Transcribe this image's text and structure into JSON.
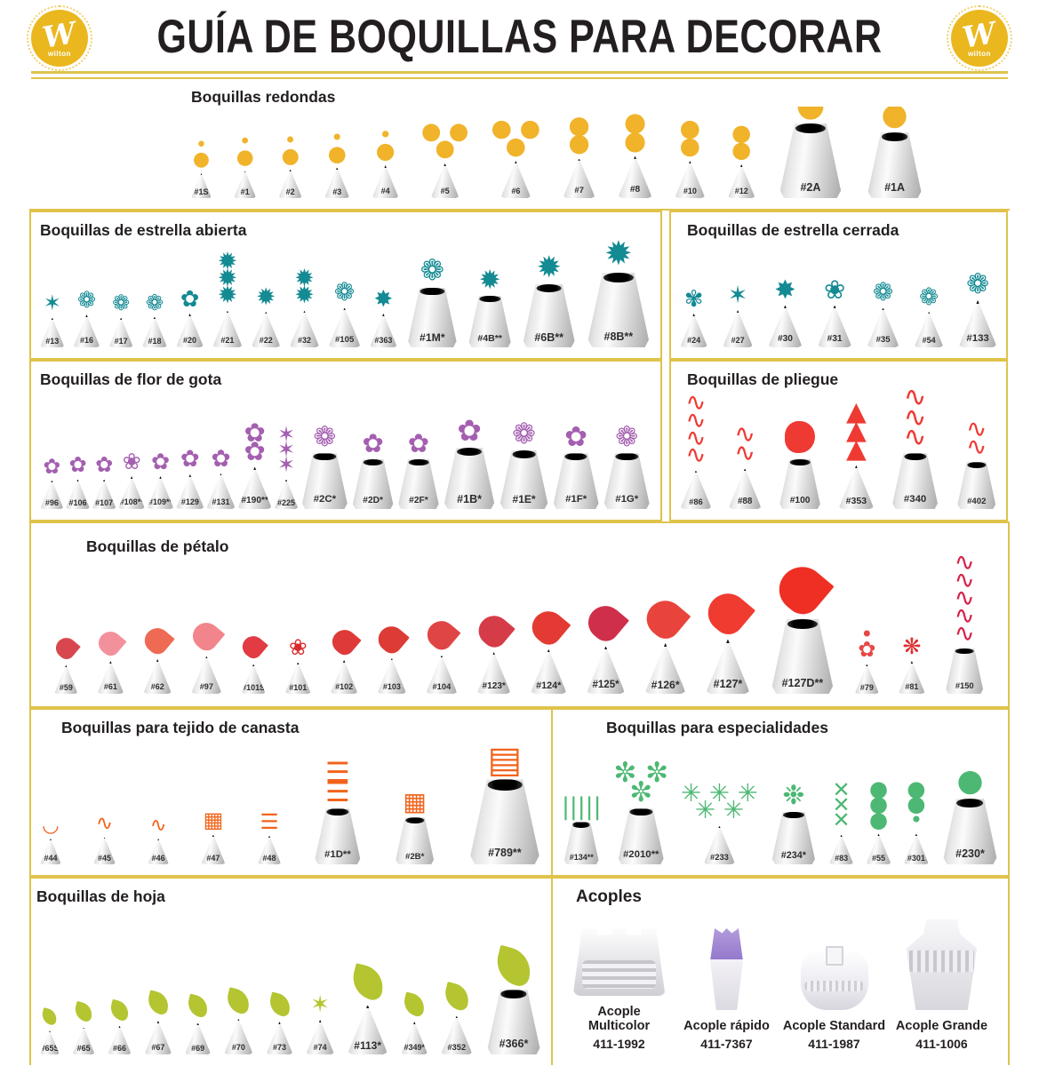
{
  "header": {
    "title": "GUÍA DE BOQUILLAS PARA DECORAR",
    "logo_letter": "W",
    "logo_sub": "wilton",
    "brand_gold": "#eab71e",
    "rule_gold": "#dfc34a"
  },
  "sections": [
    {
      "id": "redondas",
      "title": "Boquillas redondas",
      "color": "#f0b32a",
      "tips": [
        {
          "label": "#1S",
          "glyph": "•\n●",
          "s": 0.5
        },
        {
          "label": "#1",
          "glyph": "•\n●",
          "s": 0.55
        },
        {
          "label": "#2",
          "glyph": "•\n●",
          "s": 0.58
        },
        {
          "label": "#3",
          "glyph": "•\n●",
          "s": 0.62
        },
        {
          "label": "#4",
          "glyph": "•\n●",
          "s": 0.66
        },
        {
          "label": "#5",
          "glyph": "● ●\n●",
          "s": 0.7
        },
        {
          "label": "#6",
          "glyph": "● ●\n●",
          "s": 0.75
        },
        {
          "label": "#7",
          "glyph": "●\n●",
          "s": 0.8
        },
        {
          "label": "#8",
          "glyph": "●\n●",
          "s": 0.85
        },
        {
          "label": "#10",
          "glyph": "●\n●",
          "s": 0.75
        },
        {
          "label": "#12",
          "glyph": "●\n●",
          "s": 0.68
        },
        {
          "label": "#2A",
          "glyph": "●",
          "s": 1.28,
          "kind": "tube"
        },
        {
          "label": "#1A",
          "glyph": "●",
          "s": 1.12,
          "kind": "tube"
        }
      ]
    },
    {
      "id": "abierta",
      "title": "Boquillas de estrella abierta",
      "color": "#148a93",
      "tips": [
        {
          "label": "#13",
          "glyph": "✶",
          "s": 0.6
        },
        {
          "label": "#16",
          "glyph": "❁",
          "s": 0.66
        },
        {
          "label": "#17",
          "glyph": "❁",
          "s": 0.6
        },
        {
          "label": "#18",
          "glyph": "❁",
          "s": 0.62
        },
        {
          "label": "#20",
          "glyph": "✿",
          "s": 0.68
        },
        {
          "label": "#21",
          "glyph": "✹\n✹\n✹",
          "s": 0.74
        },
        {
          "label": "#22",
          "glyph": "✹",
          "s": 0.72
        },
        {
          "label": "#32",
          "glyph": "✹\n✹",
          "s": 0.74
        },
        {
          "label": "#105",
          "glyph": "❁",
          "s": 0.8
        },
        {
          "label": "#363",
          "glyph": "✸",
          "s": 0.68
        },
        {
          "label": "#1M*",
          "glyph": "❁",
          "s": 1.02,
          "kind": "tube"
        },
        {
          "label": "#4B**",
          "glyph": "✹",
          "s": 0.88,
          "kind": "tube"
        },
        {
          "label": "#6B**",
          "glyph": "✹",
          "s": 1.08,
          "kind": "tube"
        },
        {
          "label": "#8B**",
          "glyph": "✹",
          "s": 1.28,
          "kind": "tube"
        }
      ]
    },
    {
      "id": "cerrada",
      "title": "Boquillas de estrella cerrada",
      "color": "#148a93",
      "tips": [
        {
          "label": "#24",
          "glyph": "✾",
          "s": 0.68
        },
        {
          "label": "#27",
          "glyph": "✶",
          "s": 0.75
        },
        {
          "label": "#30",
          "glyph": "✸",
          "s": 0.85
        },
        {
          "label": "#31",
          "glyph": "❀",
          "s": 0.85
        },
        {
          "label": "#35",
          "glyph": "❁",
          "s": 0.8
        },
        {
          "label": "#54",
          "glyph": "❁",
          "s": 0.72
        },
        {
          "label": "#133",
          "glyph": "❁",
          "s": 0.95
        }
      ]
    },
    {
      "id": "gota",
      "title": "Boquillas de flor de gota",
      "color": "#a45fb0",
      "tips": [
        {
          "label": "#96",
          "glyph": "✿",
          "s": 0.58
        },
        {
          "label": "#106",
          "glyph": "✿",
          "s": 0.6
        },
        {
          "label": "#107",
          "glyph": "✿",
          "s": 0.6
        },
        {
          "label": "#108**",
          "glyph": "❀",
          "s": 0.66
        },
        {
          "label": "#109**",
          "glyph": "✿",
          "s": 0.66
        },
        {
          "label": "#129",
          "glyph": "✿",
          "s": 0.7
        },
        {
          "label": "#131",
          "glyph": "✿",
          "s": 0.72
        },
        {
          "label": "#190**",
          "glyph": "✿\n✿",
          "s": 0.85
        },
        {
          "label": "#225",
          "glyph": "✶\n✶\n✶",
          "s": 0.6
        },
        {
          "label": "#2C*",
          "glyph": "❁",
          "s": 0.95,
          "kind": "tube"
        },
        {
          "label": "#2D*",
          "glyph": "✿",
          "s": 0.85,
          "kind": "tube"
        },
        {
          "label": "#2F*",
          "glyph": "✿",
          "s": 0.85,
          "kind": "tube"
        },
        {
          "label": "#1B*",
          "glyph": "✿",
          "s": 1.05,
          "kind": "tube"
        },
        {
          "label": "#1E*",
          "glyph": "❁",
          "s": 1.0,
          "kind": "tube"
        },
        {
          "label": "#1F*",
          "glyph": "✿",
          "s": 0.95,
          "kind": "tube"
        },
        {
          "label": "#1G*",
          "glyph": "❁",
          "s": 0.95,
          "kind": "tube"
        }
      ]
    },
    {
      "id": "pliegue",
      "title": "Boquillas de pliegue",
      "color": "#ee3a33",
      "tips": [
        {
          "label": "#86",
          "glyph": "∿\n∿\n∿\n∿",
          "s": 0.78
        },
        {
          "label": "#88",
          "glyph": "∿\n∿",
          "s": 0.82
        },
        {
          "label": "#100",
          "shape": "blob",
          "s": 0.85,
          "kind": "tube"
        },
        {
          "label": "#353",
          "glyph": "▲\n▲\n▲",
          "s": 0.88
        },
        {
          "label": "#340",
          "glyph": "∿\n∿\n∿\n∿\n∿",
          "s": 0.95,
          "kind": "tube"
        },
        {
          "label": "#402",
          "glyph": "∿\n∿",
          "s": 0.8,
          "kind": "tube"
        }
      ]
    },
    {
      "id": "petalo",
      "title": "Boquillas de pétalo",
      "color": "#e23b3b",
      "tips": [
        {
          "label": "#59",
          "shape": "petal",
          "s": 0.58,
          "c": "#d8474f"
        },
        {
          "label": "#61",
          "shape": "petal",
          "s": 0.66,
          "c": "#f2919c"
        },
        {
          "label": "#62",
          "shape": "petal",
          "s": 0.7,
          "c": "#ef6a55"
        },
        {
          "label": "#97",
          "shape": "petal",
          "s": 0.76,
          "c": "#f2858b"
        },
        {
          "label": "#101S",
          "shape": "petal",
          "s": 0.6,
          "c": "#e23b43"
        },
        {
          "label": "#101",
          "glyph": "❀",
          "s": 0.64,
          "c": "#d92b2b"
        },
        {
          "label": "#102",
          "shape": "petal",
          "s": 0.68,
          "c": "#de3a3a"
        },
        {
          "label": "#103",
          "shape": "petal",
          "s": 0.72,
          "c": "#dd3b35"
        },
        {
          "label": "#104",
          "shape": "petal",
          "s": 0.78,
          "c": "#e04545"
        },
        {
          "label": "#123*",
          "shape": "petal",
          "s": 0.84,
          "c": "#d53c47"
        },
        {
          "label": "#124*",
          "shape": "petal",
          "s": 0.9,
          "c": "#e33b33"
        },
        {
          "label": "#125*",
          "shape": "petal",
          "s": 0.96,
          "c": "#cf2f4a"
        },
        {
          "label": "#126*",
          "shape": "petal",
          "s": 1.02,
          "c": "#e8443c"
        },
        {
          "label": "#127*",
          "shape": "petal",
          "s": 1.1,
          "c": "#ef3b30"
        },
        {
          "label": "#127D**",
          "shape": "petal",
          "s": 1.28,
          "kind": "tube",
          "c": "#ef2f24"
        },
        {
          "label": "#79",
          "glyph": "•\n✿",
          "s": 0.6,
          "c": "#e84747"
        },
        {
          "label": "#81",
          "glyph": "❋",
          "s": 0.66,
          "c": "#de3333"
        },
        {
          "label": "#150",
          "glyph": "∿\n∿\n∿\n∿\n∿",
          "s": 0.78,
          "kind": "tube",
          "c": "#d6234a"
        }
      ]
    },
    {
      "id": "canasta",
      "title": "Boquillas para tejido de canasta",
      "color": "#f2641c",
      "tips": [
        {
          "label": "#44",
          "glyph": "◡",
          "s": 0.52
        },
        {
          "label": "#45",
          "glyph": "∿",
          "s": 0.55
        },
        {
          "label": "#46",
          "glyph": "∿",
          "s": 0.52
        },
        {
          "label": "#47",
          "glyph": "▦",
          "s": 0.6
        },
        {
          "label": "#48",
          "glyph": "☰",
          "s": 0.58
        },
        {
          "label": "#1D**",
          "glyph": "☰\n☰",
          "s": 0.95,
          "kind": "tube"
        },
        {
          "label": "#2B*",
          "glyph": "▦",
          "s": 0.8,
          "kind": "tube"
        },
        {
          "label": "#789**",
          "glyph": "▤",
          "s": 1.45,
          "kind": "tube"
        }
      ]
    },
    {
      "id": "especialidades",
      "title": "Boquillas para especialidades",
      "color": "#4db873",
      "tips": [
        {
          "label": "#134**",
          "glyph": "|||||",
          "s": 0.72,
          "kind": "tube"
        },
        {
          "label": "#2010**",
          "glyph": "✼ ✼\n✼",
          "s": 0.95,
          "kind": "tube"
        },
        {
          "label": "#233",
          "glyph": "✳ ✳ ✳\n✳ ✳",
          "s": 0.78
        },
        {
          "label": "#234*",
          "glyph": "❉",
          "s": 0.9,
          "kind": "tube"
        },
        {
          "label": "#83",
          "glyph": "✕\n✕\n✕",
          "s": 0.6
        },
        {
          "label": "#55",
          "glyph": "●\n●\n●",
          "s": 0.62
        },
        {
          "label": "#301",
          "glyph": "●\n●\n•",
          "s": 0.62
        },
        {
          "label": "#230*",
          "glyph": "●",
          "s": 1.12,
          "kind": "tube"
        }
      ]
    },
    {
      "id": "hoja",
      "title": "Boquillas de hoja",
      "color": "#b4c531",
      "tips": [
        {
          "label": "#65S",
          "shape": "leaf",
          "s": 0.48
        },
        {
          "label": "#65",
          "shape": "leaf",
          "s": 0.55
        },
        {
          "label": "#66",
          "shape": "leaf",
          "s": 0.58
        },
        {
          "label": "#67",
          "shape": "leaf",
          "s": 0.68
        },
        {
          "label": "#69",
          "shape": "leaf",
          "s": 0.64
        },
        {
          "label": "#70",
          "shape": "leaf",
          "s": 0.72
        },
        {
          "label": "#73",
          "shape": "leaf",
          "s": 0.66
        },
        {
          "label": "#74",
          "glyph": "✶",
          "s": 0.7
        },
        {
          "label": "#113*",
          "shape": "leaf",
          "s": 1.0
        },
        {
          "label": "#349*",
          "shape": "leaf",
          "s": 0.66
        },
        {
          "label": "#352",
          "shape": "leaf",
          "s": 0.78
        },
        {
          "label": "#366*",
          "shape": "leaf",
          "s": 1.1,
          "kind": "tube"
        }
      ]
    }
  ],
  "couplers": {
    "title": "Acoples",
    "items": [
      {
        "name": "Acople Multicolor",
        "sku": "411-1992",
        "icon": "coupler-multicolor"
      },
      {
        "name": "Acople rápido",
        "sku": "411-7367",
        "icon": "coupler-rapido"
      },
      {
        "name": "Acople Standard",
        "sku": "411-1987",
        "icon": "coupler-standard"
      },
      {
        "name": "Acople Grande",
        "sku": "411-1006",
        "icon": "coupler-grande"
      }
    ]
  }
}
